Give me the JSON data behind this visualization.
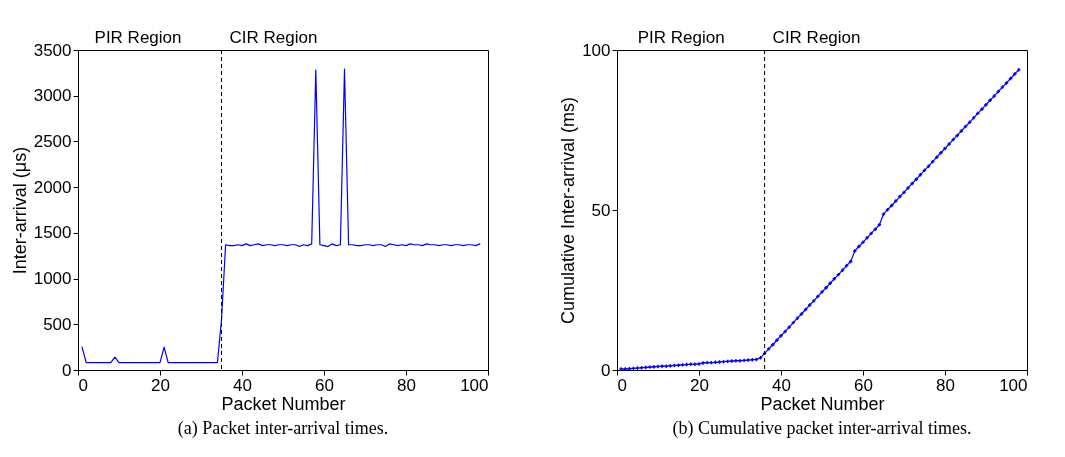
{
  "chart_data": [
    {
      "type": "line",
      "xlabel": "Packet Number",
      "ylabel": "Inter-arrival (μs)",
      "x": [
        1,
        2,
        3,
        4,
        5,
        6,
        7,
        8,
        9,
        10,
        11,
        12,
        13,
        14,
        15,
        16,
        17,
        18,
        19,
        20,
        21,
        22,
        23,
        24,
        25,
        26,
        27,
        28,
        29,
        30,
        31,
        32,
        33,
        34,
        35,
        36,
        37,
        38,
        39,
        40,
        41,
        42,
        43,
        44,
        45,
        46,
        47,
        48,
        49,
        50,
        51,
        52,
        53,
        54,
        55,
        56,
        57,
        58,
        59,
        60,
        61,
        62,
        63,
        64,
        65,
        66,
        67,
        68,
        69,
        70,
        71,
        72,
        73,
        74,
        75,
        76,
        77,
        78,
        79,
        80,
        81,
        82,
        83,
        84,
        85,
        86,
        87,
        88,
        89,
        90,
        91,
        92,
        93,
        94,
        95,
        96,
        97,
        98
      ],
      "series": [
        {
          "color": "#0000ff",
          "values": [
            250,
            80,
            80,
            80,
            80,
            80,
            80,
            80,
            140,
            80,
            80,
            80,
            80,
            80,
            80,
            80,
            80,
            80,
            80,
            80,
            250,
            80,
            80,
            80,
            80,
            80,
            80,
            80,
            80,
            80,
            80,
            80,
            80,
            80,
            550,
            1370,
            1360,
            1360,
            1370,
            1360,
            1380,
            1360,
            1370,
            1380,
            1360,
            1370,
            1370,
            1360,
            1370,
            1370,
            1360,
            1370,
            1370,
            1350,
            1370,
            1360,
            1380,
            3280,
            1370,
            1360,
            1350,
            1380,
            1360,
            1370,
            3290,
            1370,
            1370,
            1360,
            1360,
            1370,
            1370,
            1360,
            1370,
            1370,
            1350,
            1380,
            1370,
            1360,
            1370,
            1360,
            1380,
            1370,
            1370,
            1360,
            1380,
            1370,
            1370,
            1360,
            1370,
            1370,
            1360,
            1370,
            1370,
            1360,
            1370,
            1370,
            1360,
            1380
          ]
        }
      ],
      "xlim": [
        0,
        100
      ],
      "xticks": [
        0,
        20,
        40,
        60,
        80,
        100
      ],
      "ylim": [
        0,
        3500
      ],
      "yticks": [
        0,
        500,
        1000,
        1500,
        2000,
        2500,
        3000,
        3500
      ],
      "ref_lines": [
        {
          "axis": "x",
          "value": 35,
          "color": "#000000",
          "line_style": "dashed"
        }
      ],
      "annotations": [
        "PIR Region",
        "CIR Region",
        "(a) Packet inter-arrival times."
      ],
      "grid": false,
      "marker": "none",
      "line_style": "solid"
    },
    {
      "type": "line",
      "xlabel": "Packet Number",
      "ylabel": "Cumulative Inter-arrival (ms)",
      "x": [
        1,
        2,
        3,
        4,
        5,
        6,
        7,
        8,
        9,
        10,
        11,
        12,
        13,
        14,
        15,
        16,
        17,
        18,
        19,
        20,
        21,
        22,
        23,
        24,
        25,
        26,
        27,
        28,
        29,
        30,
        31,
        32,
        33,
        34,
        35,
        36,
        37,
        38,
        39,
        40,
        41,
        42,
        43,
        44,
        45,
        46,
        47,
        48,
        49,
        50,
        51,
        52,
        53,
        54,
        55,
        56,
        57,
        58,
        59,
        60,
        61,
        62,
        63,
        64,
        65,
        66,
        67,
        68,
        69,
        70,
        71,
        72,
        73,
        74,
        75,
        76,
        77,
        78,
        79,
        80,
        81,
        82,
        83,
        84,
        85,
        86,
        87,
        88,
        89,
        90,
        91,
        92,
        93,
        94,
        95,
        96,
        97,
        98
      ],
      "series": [
        {
          "color": "#0000ff",
          "values": [
            0.3,
            0.3,
            0.4,
            0.5,
            0.6,
            0.7,
            0.8,
            0.9,
            1.0,
            1.1,
            1.2,
            1.2,
            1.3,
            1.4,
            1.5,
            1.6,
            1.7,
            1.8,
            1.8,
            1.9,
            2.2,
            2.3,
            2.3,
            2.4,
            2.5,
            2.6,
            2.7,
            2.8,
            2.9,
            2.9,
            3.0,
            3.1,
            3.2,
            3.3,
            3.8,
            5.2,
            6.6,
            7.9,
            9.3,
            10.7,
            12.0,
            13.4,
            14.8,
            16.2,
            17.5,
            18.9,
            20.3,
            21.6,
            23.0,
            24.4,
            25.7,
            27.1,
            28.5,
            29.8,
            31.2,
            32.6,
            33.9,
            37.2,
            38.6,
            39.9,
            41.3,
            42.7,
            44.0,
            45.4,
            48.7,
            50.1,
            51.4,
            52.8,
            54.2,
            55.5,
            56.9,
            58.3,
            59.6,
            61.0,
            62.4,
            63.7,
            65.1,
            66.5,
            67.9,
            69.2,
            70.6,
            72.0,
            73.3,
            74.7,
            76.1,
            77.4,
            78.8,
            80.2,
            81.5,
            82.9,
            84.3,
            85.6,
            87.0,
            88.4,
            89.7,
            91.1,
            92.5,
            93.8
          ]
        }
      ],
      "xlim": [
        0,
        100
      ],
      "xticks": [
        0,
        20,
        40,
        60,
        80,
        100
      ],
      "ylim": [
        0,
        100
      ],
      "yticks": [
        0,
        50,
        100
      ],
      "ref_lines": [
        {
          "axis": "x",
          "value": 36,
          "color": "#000000",
          "line_style": "dashed"
        }
      ],
      "annotations": [
        "PIR Region",
        "CIR Region",
        "(b) Cumulative packet inter-arrival times."
      ],
      "grid": false,
      "marker": "cross",
      "line_style": "solid"
    }
  ]
}
